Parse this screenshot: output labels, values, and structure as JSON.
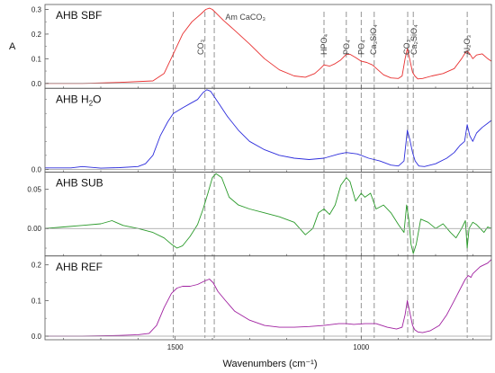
{
  "chart_data": {
    "type": "line",
    "xlabel": "Wavenumbers (cm⁻¹)",
    "ylabel": "A",
    "x_direction": "descending",
    "xlim": [
      1850,
      650
    ],
    "x_ticks": [
      1500,
      1000
    ],
    "grid": false,
    "guide_lines_x": [
      1505,
      1420,
      1395,
      1100,
      1040,
      1000,
      965,
      875,
      860,
      715
    ],
    "annotations": [
      {
        "text": "CO₃",
        "x": 1432
      },
      {
        "text": "Am CaCO₃",
        "x": 1375
      },
      {
        "text": "HPO₄",
        "x": 1100
      },
      {
        "text": "PO₄",
        "x": 1040
      },
      {
        "text": "PO₄",
        "x": 1000
      },
      {
        "text": "Ca₃SiO₄",
        "x": 967
      },
      {
        "text": "CO₃",
        "x": 877
      },
      {
        "text": "Ca₂SiO₄",
        "x": 858
      },
      {
        "text": "Al₂O₃",
        "x": 715
      }
    ],
    "panels": [
      {
        "name": "AHB SBF",
        "name_main": "AHB SBF",
        "name_sub": "",
        "name_tail": "",
        "color": "#e83030",
        "ylim": [
          -0.02,
          0.32
        ],
        "y_ticks": [
          0.0,
          0.1,
          0.2,
          0.3
        ],
        "y_tick_labels": [
          "0.0",
          "0.1",
          "0.2",
          "0.3"
        ],
        "x": [
          1850,
          1750,
          1650,
          1560,
          1530,
          1505,
          1480,
          1455,
          1432,
          1418,
          1408,
          1400,
          1390,
          1370,
          1340,
          1300,
          1260,
          1220,
          1180,
          1150,
          1125,
          1110,
          1100,
          1085,
          1070,
          1055,
          1040,
          1030,
          1015,
          1000,
          985,
          970,
          955,
          940,
          920,
          900,
          890,
          882,
          876,
          870,
          862,
          856,
          848,
          835,
          810,
          780,
          750,
          730,
          720,
          714,
          708,
          700,
          690,
          675,
          660,
          650
        ],
        "y": [
          0.0,
          0.0,
          0.004,
          0.01,
          0.04,
          0.12,
          0.2,
          0.25,
          0.28,
          0.3,
          0.305,
          0.3,
          0.285,
          0.255,
          0.215,
          0.16,
          0.1,
          0.055,
          0.03,
          0.025,
          0.04,
          0.06,
          0.075,
          0.07,
          0.08,
          0.095,
          0.118,
          0.118,
          0.105,
          0.09,
          0.085,
          0.075,
          0.055,
          0.035,
          0.022,
          0.02,
          0.03,
          0.1,
          0.14,
          0.1,
          0.045,
          0.03,
          0.018,
          0.02,
          0.03,
          0.04,
          0.06,
          0.1,
          0.125,
          0.13,
          0.12,
          0.1,
          0.115,
          0.12,
          0.1,
          0.09
        ]
      },
      {
        "name": "AHB H₂O",
        "name_main": "AHB H",
        "name_sub": "2",
        "name_tail": "O",
        "color": "#2d2ddc",
        "ylim": [
          -0.01,
          0.29
        ],
        "y_ticks": [
          0.0
        ],
        "y_tick_labels": [
          "0.0"
        ],
        "x": [
          1850,
          1780,
          1750,
          1700,
          1650,
          1600,
          1580,
          1560,
          1540,
          1520,
          1505,
          1480,
          1460,
          1440,
          1425,
          1415,
          1405,
          1395,
          1380,
          1360,
          1330,
          1300,
          1260,
          1220,
          1180,
          1140,
          1100,
          1060,
          1040,
          1010,
          980,
          950,
          920,
          900,
          885,
          876,
          870,
          862,
          855,
          845,
          830,
          800,
          770,
          750,
          735,
          722,
          715,
          708,
          700,
          690,
          675,
          660,
          650
        ],
        "y": [
          0.005,
          0.005,
          0.01,
          0.004,
          0.006,
          0.01,
          0.02,
          0.05,
          0.12,
          0.17,
          0.2,
          0.22,
          0.235,
          0.25,
          0.275,
          0.285,
          0.28,
          0.26,
          0.23,
          0.19,
          0.14,
          0.1,
          0.07,
          0.05,
          0.04,
          0.035,
          0.04,
          0.055,
          0.06,
          0.055,
          0.04,
          0.03,
          0.015,
          0.012,
          0.03,
          0.14,
          0.11,
          0.06,
          0.03,
          0.012,
          0.01,
          0.02,
          0.04,
          0.06,
          0.085,
          0.1,
          0.16,
          0.12,
          0.1,
          0.13,
          0.15,
          0.165,
          0.175
        ]
      },
      {
        "name": "AHB SUB",
        "name_main": "AHB SUB",
        "name_sub": "",
        "name_tail": "",
        "color": "#2a9a2a",
        "ylim": [
          -0.035,
          0.072
        ],
        "y_ticks": [
          0.0,
          0.05
        ],
        "y_tick_labels": [
          "0.00",
          "0.05"
        ],
        "x": [
          1850,
          1800,
          1750,
          1700,
          1670,
          1640,
          1600,
          1560,
          1530,
          1510,
          1495,
          1480,
          1460,
          1440,
          1425,
          1412,
          1400,
          1390,
          1375,
          1355,
          1330,
          1300,
          1260,
          1220,
          1180,
          1150,
          1130,
          1115,
          1100,
          1085,
          1070,
          1055,
          1040,
          1030,
          1015,
          1000,
          990,
          975,
          960,
          940,
          920,
          900,
          885,
          878,
          872,
          866,
          860,
          852,
          840,
          820,
          800,
          780,
          760,
          745,
          730,
          720,
          715,
          710,
          700,
          690,
          680,
          670,
          660,
          650
        ],
        "y": [
          0.0,
          0.002,
          0.004,
          0.006,
          0.01,
          0.004,
          0.0,
          -0.005,
          -0.012,
          -0.02,
          -0.025,
          -0.022,
          -0.01,
          0.005,
          0.025,
          0.045,
          0.065,
          0.07,
          0.065,
          0.04,
          0.03,
          0.025,
          0.02,
          0.015,
          0.008,
          -0.008,
          0.0,
          0.02,
          0.025,
          0.018,
          0.03,
          0.055,
          0.065,
          0.06,
          0.035,
          0.045,
          0.04,
          0.045,
          0.025,
          0.03,
          0.02,
          0.005,
          -0.005,
          0.03,
          0.012,
          -0.02,
          -0.032,
          -0.02,
          0.012,
          0.008,
          0.0,
          0.006,
          -0.005,
          -0.012,
          0.0,
          0.01,
          -0.025,
          0.0,
          0.008,
          0.005,
          0.0,
          -0.005,
          0.002,
          0.0
        ]
      },
      {
        "name": "AHB REF",
        "name_main": "AHB REF",
        "name_sub": "",
        "name_tail": "",
        "color": "#a020a0",
        "ylim": [
          -0.01,
          0.225
        ],
        "y_ticks": [
          0.0,
          0.1,
          0.2
        ],
        "y_tick_labels": [
          "0.0",
          "0.1",
          "0.2"
        ],
        "x": [
          1850,
          1750,
          1650,
          1600,
          1570,
          1550,
          1530,
          1510,
          1495,
          1480,
          1460,
          1440,
          1420,
          1408,
          1398,
          1385,
          1365,
          1340,
          1300,
          1260,
          1220,
          1180,
          1140,
          1100,
          1060,
          1040,
          1020,
          990,
          960,
          930,
          905,
          890,
          882,
          876,
          870,
          862,
          856,
          848,
          835,
          815,
          790,
          770,
          750,
          730,
          720,
          712,
          705,
          700,
          690,
          680,
          670,
          660,
          650
        ],
        "y": [
          0.0,
          0.0,
          0.002,
          0.004,
          0.008,
          0.03,
          0.08,
          0.12,
          0.135,
          0.14,
          0.14,
          0.145,
          0.155,
          0.16,
          0.15,
          0.125,
          0.1,
          0.07,
          0.045,
          0.03,
          0.025,
          0.025,
          0.027,
          0.03,
          0.035,
          0.035,
          0.033,
          0.035,
          0.035,
          0.025,
          0.02,
          0.025,
          0.06,
          0.1,
          0.07,
          0.03,
          0.018,
          0.012,
          0.01,
          0.015,
          0.03,
          0.06,
          0.1,
          0.14,
          0.16,
          0.17,
          0.165,
          0.175,
          0.185,
          0.195,
          0.2,
          0.205,
          0.215
        ]
      }
    ]
  }
}
